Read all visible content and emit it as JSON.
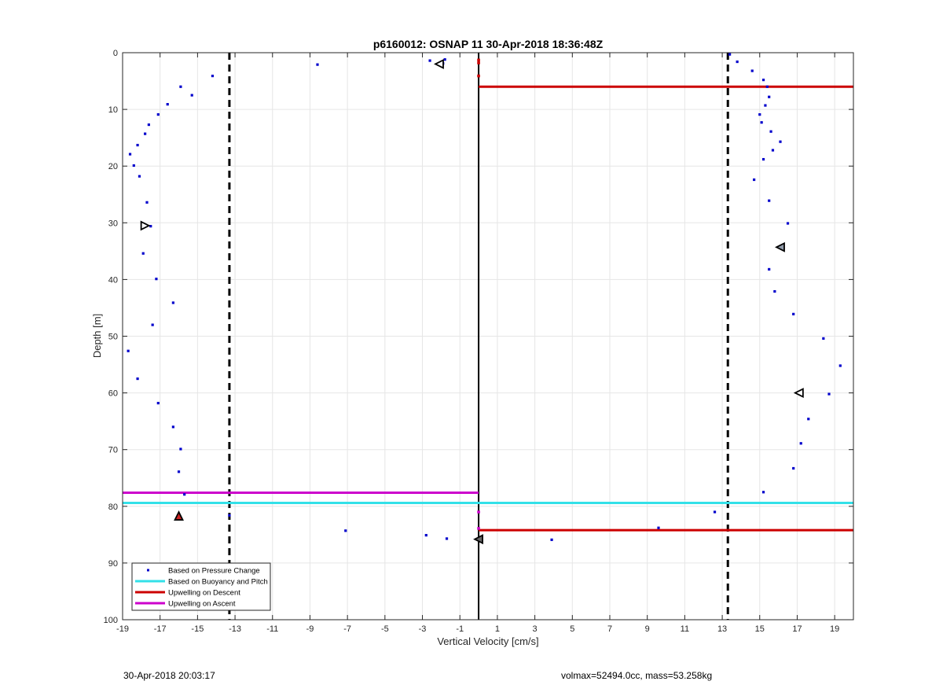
{
  "chart_data": {
    "type": "scatter",
    "title": "p6160012: OSNAP 11 30-Apr-2018 18:36:48Z",
    "xlabel": "Vertical Velocity [cm/s]",
    "ylabel": "Depth [m]",
    "xlim": [
      -19,
      20
    ],
    "ylim": [
      0,
      100
    ],
    "y_reversed": true,
    "grid": true,
    "xticks": [
      -19,
      -17,
      -15,
      -13,
      -11,
      -9,
      -7,
      -5,
      -3,
      -1,
      1,
      3,
      5,
      7,
      9,
      11,
      13,
      15,
      17,
      19
    ],
    "yticks": [
      0,
      10,
      20,
      30,
      40,
      50,
      60,
      70,
      80,
      90,
      100
    ],
    "legend": {
      "placement": "bottom-left",
      "entries": [
        {
          "label": "Based on Pressure Change",
          "color": "#0000cc",
          "style": "marker"
        },
        {
          "label": "Based on Buoyancy and Pitch",
          "color": "#33e0e8",
          "style": "line"
        },
        {
          "label": "Upwelling on Descent",
          "color": "#cc0000",
          "style": "line"
        },
        {
          "label": "Upwelling on Ascent",
          "color": "#cc00cc",
          "style": "line"
        }
      ]
    },
    "series": [
      {
        "name": "Based on Pressure Change",
        "color": "#0000cc",
        "marker": "dot",
        "points": [
          [
            -14.2,
            4.1
          ],
          [
            -15.9,
            6.0
          ],
          [
            -15.3,
            7.5
          ],
          [
            -16.6,
            9.1
          ],
          [
            -17.1,
            10.9
          ],
          [
            -17.6,
            12.7
          ],
          [
            -17.8,
            14.3
          ],
          [
            -18.2,
            16.3
          ],
          [
            -18.6,
            17.9
          ],
          [
            -18.4,
            19.9
          ],
          [
            -18.1,
            21.8
          ],
          [
            -17.7,
            26.4
          ],
          [
            -17.5,
            30.6
          ],
          [
            -17.9,
            35.4
          ],
          [
            -17.2,
            39.9
          ],
          [
            -16.3,
            44.1
          ],
          [
            -17.4,
            48.0
          ],
          [
            -18.7,
            52.6
          ],
          [
            -18.2,
            57.5
          ],
          [
            -17.1,
            61.8
          ],
          [
            -16.3,
            66.0
          ],
          [
            -15.9,
            69.9
          ],
          [
            -16.0,
            73.9
          ],
          [
            -15.7,
            77.9
          ],
          [
            -13.3,
            81.6
          ],
          [
            -8.6,
            2.1
          ],
          [
            -2.6,
            1.4
          ],
          [
            -1.8,
            1.2
          ],
          [
            -1.9,
            1.9
          ],
          [
            -7.1,
            84.3
          ],
          [
            -2.8,
            85.1
          ],
          [
            -1.7,
            85.7
          ],
          [
            3.9,
            85.9
          ],
          [
            9.6,
            83.8
          ],
          [
            12.6,
            81.0
          ],
          [
            13.4,
            0.3
          ],
          [
            13.8,
            1.6
          ],
          [
            14.6,
            3.2
          ],
          [
            15.2,
            4.8
          ],
          [
            15.4,
            6.0
          ],
          [
            15.5,
            7.8
          ],
          [
            15.3,
            9.3
          ],
          [
            15.0,
            10.9
          ],
          [
            15.1,
            12.3
          ],
          [
            15.6,
            13.9
          ],
          [
            16.1,
            15.7
          ],
          [
            15.7,
            17.2
          ],
          [
            15.2,
            18.8
          ],
          [
            14.7,
            22.4
          ],
          [
            15.5,
            26.1
          ],
          [
            16.5,
            30.1
          ],
          [
            16.1,
            34.3
          ],
          [
            15.5,
            38.2
          ],
          [
            15.8,
            42.1
          ],
          [
            16.8,
            46.1
          ],
          [
            18.4,
            50.4
          ],
          [
            19.3,
            55.2
          ],
          [
            18.7,
            60.2
          ],
          [
            17.6,
            64.6
          ],
          [
            17.2,
            68.9
          ],
          [
            16.8,
            73.3
          ],
          [
            15.2,
            77.5
          ]
        ]
      },
      {
        "name": "Upwelling on Descent",
        "color": "#cc0000",
        "segments": [
          {
            "x": [
              0,
              20
            ],
            "y": 6.0
          },
          {
            "x": [
              0,
              20
            ],
            "y": 84.2
          }
        ]
      },
      {
        "name": "Based on Buoyancy and Pitch",
        "color": "#33e0e8",
        "segments": [
          {
            "x": [
              -19,
              20
            ],
            "y": 79.4
          }
        ]
      },
      {
        "name": "Upwelling on Ascent",
        "color": "#cc00cc",
        "segments": [
          {
            "x": [
              -19,
              0
            ],
            "y": 77.6
          }
        ]
      }
    ],
    "reference_lines": [
      {
        "orientation": "vertical",
        "x": -13.3,
        "style": "dashed",
        "color": "#000000"
      },
      {
        "orientation": "vertical",
        "x": 13.3,
        "style": "dashed",
        "color": "#000000"
      },
      {
        "orientation": "vertical",
        "x": 0,
        "style": "solid",
        "color": "#000000"
      }
    ],
    "triangle_markers": [
      {
        "x": -2.1,
        "y": 2.0,
        "direction": "left",
        "fill": "#ffffff"
      },
      {
        "x": -17.8,
        "y": 30.5,
        "direction": "right",
        "fill": "#ffffff"
      },
      {
        "x": 16.1,
        "y": 34.3,
        "direction": "left",
        "fill": "#8f9aa8"
      },
      {
        "x": 17.1,
        "y": 60.0,
        "direction": "left",
        "fill": "#ffffff"
      },
      {
        "x": -16.0,
        "y": 81.7,
        "direction": "up",
        "fill": "#cc2222"
      },
      {
        "x": 0,
        "y": 85.8,
        "direction": "left",
        "fill": "#666666"
      }
    ],
    "small_markers_at_zero": [
      {
        "x": 0,
        "y": 1.3,
        "color": "#cc0000"
      },
      {
        "x": 0,
        "y": 1.8,
        "color": "#cc0000"
      },
      {
        "x": 0,
        "y": 4.1,
        "color": "#cc0000"
      },
      {
        "x": 0,
        "y": 81.0,
        "color": "#cc00cc"
      },
      {
        "x": 0,
        "y": 83.9,
        "color": "#cc00cc"
      }
    ]
  },
  "footer": {
    "left": "30-Apr-2018 20:03:17",
    "right": "volmax=52494.0cc, mass=53.258kg"
  }
}
